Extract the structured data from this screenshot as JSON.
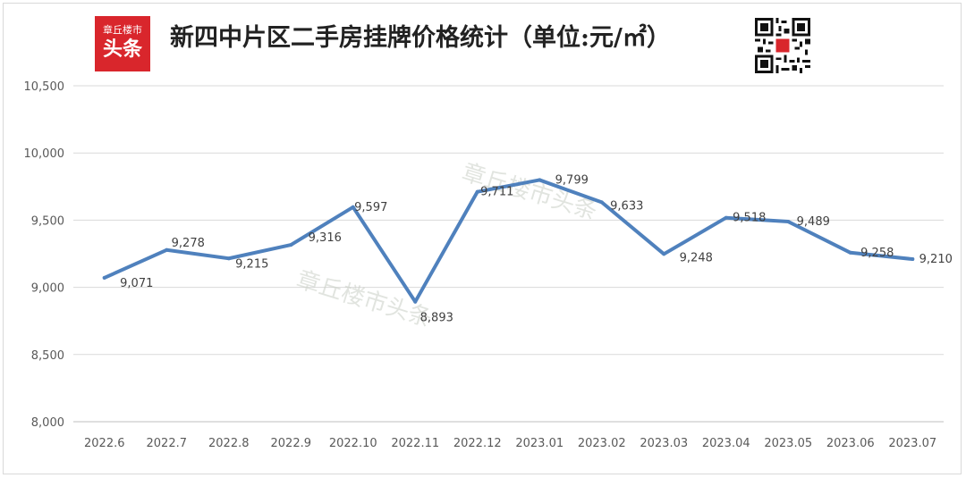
{
  "logo": {
    "line1": "章丘楼市",
    "line2": "头条"
  },
  "title": "新四中片区二手房挂牌价格统计（单位:元/㎡）",
  "qr_icon": "qr-code-icon",
  "watermark": "章丘楼市头条",
  "colors": {
    "line": "#4f81bd",
    "logo_bg": "#d9262c",
    "grid": "#d9d9d9"
  },
  "chart_data": {
    "type": "line",
    "categories": [
      "2022.6",
      "2022.7",
      "2022.8",
      "2022.9",
      "2022.10",
      "2022.11",
      "2022.12",
      "2023.01",
      "2023.02",
      "2023.03",
      "2023.04",
      "2023.05",
      "2023.06",
      "2023.07"
    ],
    "values": [
      9071,
      9278,
      9215,
      9316,
      9597,
      8893,
      9711,
      9799,
      9633,
      9248,
      9518,
      9489,
      9258,
      9210
    ],
    "data_labels": [
      "9,071",
      "9,278",
      "9,215",
      "9,316",
      "9,597",
      "8,893",
      "9,711",
      "9,799",
      "9,633",
      "9,248",
      "9,518",
      "9,489",
      "9,258",
      "9,210"
    ],
    "yticks": [
      "8,000",
      "8,500",
      "9,000",
      "9,500",
      "10,000",
      "10,500"
    ],
    "ylim": [
      8000,
      10500
    ],
    "grid": true,
    "legend": "none"
  }
}
